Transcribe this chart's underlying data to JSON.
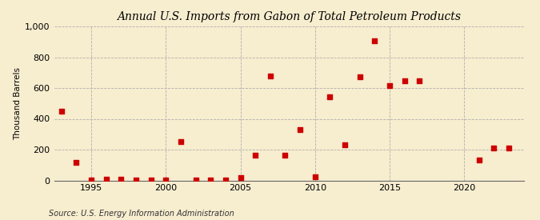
{
  "title": "Annual U.S. Imports from Gabon of Total Petroleum Products",
  "ylabel": "Thousand Barrels",
  "source": "Source: U.S. Energy Information Administration",
  "background_color": "#f7edcf",
  "marker_color": "#cc0000",
  "xlim": [
    1992.5,
    2024
  ],
  "ylim": [
    0,
    1000
  ],
  "yticks": [
    0,
    200,
    400,
    600,
    800,
    1000
  ],
  "xticks": [
    1995,
    2000,
    2005,
    2010,
    2015,
    2020
  ],
  "years": [
    1993,
    1994,
    1995,
    1996,
    1997,
    1998,
    1999,
    2000,
    2001,
    2002,
    2003,
    2004,
    2005,
    2006,
    2007,
    2008,
    2009,
    2010,
    2011,
    2012,
    2013,
    2014,
    2015,
    2016,
    2017,
    2021,
    2022,
    2023
  ],
  "values": [
    450,
    115,
    5,
    8,
    8,
    5,
    5,
    5,
    250,
    5,
    5,
    5,
    20,
    165,
    680,
    165,
    330,
    25,
    545,
    230,
    675,
    905,
    615,
    645,
    645,
    130,
    210,
    210
  ]
}
